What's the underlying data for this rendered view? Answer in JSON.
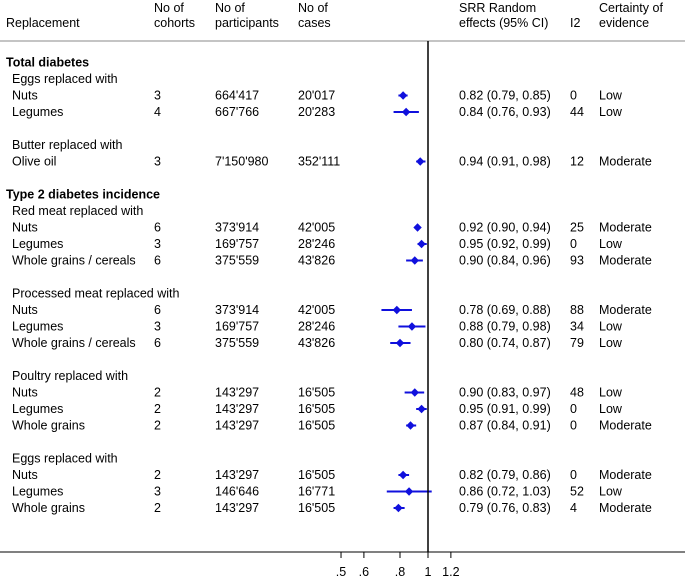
{
  "columns": {
    "replacement": "Replacement",
    "cohorts": [
      "No of",
      "cohorts"
    ],
    "participants": [
      "No of",
      "participants"
    ],
    "cases": [
      "No of",
      "cases"
    ],
    "srr": [
      "SRR Random",
      "effects (95% CI)"
    ],
    "i2": "I2",
    "certainty": [
      "Certainty of",
      "evidence"
    ]
  },
  "rows": [
    {
      "kind": "section",
      "label": "Total diabetes"
    },
    {
      "kind": "group",
      "label": "Eggs replaced with"
    },
    {
      "kind": "data",
      "label": "Nuts",
      "cohorts": "3",
      "participants": "664'417",
      "cases": "20'017",
      "est": 0.82,
      "lo": 0.79,
      "hi": 0.85,
      "ci": "0.82 (0.79, 0.85)",
      "i2": "0",
      "certainty": "Low"
    },
    {
      "kind": "data",
      "label": "Legumes",
      "cohorts": "4",
      "participants": "667'766",
      "cases": "20'283",
      "est": 0.84,
      "lo": 0.76,
      "hi": 0.93,
      "ci": "0.84 (0.76, 0.93)",
      "i2": "44",
      "certainty": "Low"
    },
    {
      "kind": "blank"
    },
    {
      "kind": "group",
      "label": "Butter replaced with"
    },
    {
      "kind": "data",
      "label": "Olive oil",
      "cohorts": "3",
      "participants": "7'150'980",
      "cases": "352'111",
      "est": 0.94,
      "lo": 0.91,
      "hi": 0.98,
      "ci": "0.94 (0.91, 0.98)",
      "i2": "12",
      "certainty": "Moderate"
    },
    {
      "kind": "blank"
    },
    {
      "kind": "section",
      "label": "Type 2 diabetes incidence"
    },
    {
      "kind": "group",
      "label": "Red meat replaced with"
    },
    {
      "kind": "data",
      "label": "Nuts",
      "cohorts": "6",
      "participants": "373'914",
      "cases": "42'005",
      "est": 0.92,
      "lo": 0.9,
      "hi": 0.94,
      "ci": "0.92 (0.90, 0.94)",
      "i2": "25",
      "certainty": "Moderate"
    },
    {
      "kind": "data",
      "label": "Legumes",
      "cohorts": "3",
      "participants": "169'757",
      "cases": "28'246",
      "est": 0.95,
      "lo": 0.92,
      "hi": 0.99,
      "ci": "0.95 (0.92, 0.99)",
      "i2": "0",
      "certainty": "Low"
    },
    {
      "kind": "data",
      "label": "Whole grains / cereals",
      "cohorts": "6",
      "participants": "375'559",
      "cases": "43'826",
      "est": 0.9,
      "lo": 0.84,
      "hi": 0.96,
      "ci": "0.90 (0.84, 0.96)",
      "i2": "93",
      "certainty": "Moderate"
    },
    {
      "kind": "blank"
    },
    {
      "kind": "group",
      "label": "Processed meat replaced with"
    },
    {
      "kind": "data",
      "label": "Nuts",
      "cohorts": "6",
      "participants": "373'914",
      "cases": "42'005",
      "est": 0.78,
      "lo": 0.69,
      "hi": 0.88,
      "ci": "0.78 (0.69, 0.88)",
      "i2": "88",
      "certainty": "Moderate"
    },
    {
      "kind": "data",
      "label": "Legumes",
      "cohorts": "3",
      "participants": "169'757",
      "cases": "28'246",
      "est": 0.88,
      "lo": 0.79,
      "hi": 0.98,
      "ci": "0.88 (0.79, 0.98)",
      "i2": "34",
      "certainty": "Low"
    },
    {
      "kind": "data",
      "label": "Whole grains / cereals",
      "cohorts": "6",
      "participants": "375'559",
      "cases": "43'826",
      "est": 0.8,
      "lo": 0.74,
      "hi": 0.87,
      "ci": "0.80 (0.74, 0.87)",
      "i2": "79",
      "certainty": "Low"
    },
    {
      "kind": "blank"
    },
    {
      "kind": "group",
      "label": "Poultry replaced with"
    },
    {
      "kind": "data",
      "label": "Nuts",
      "cohorts": "2",
      "participants": "143'297",
      "cases": "16'505",
      "est": 0.9,
      "lo": 0.83,
      "hi": 0.97,
      "ci": "0.90 (0.83, 0.97)",
      "i2": "48",
      "certainty": "Low"
    },
    {
      "kind": "data",
      "label": "Legumes",
      "cohorts": "2",
      "participants": "143'297",
      "cases": "16'505",
      "est": 0.95,
      "lo": 0.91,
      "hi": 0.99,
      "ci": "0.95 (0.91, 0.99)",
      "i2": "0",
      "certainty": "Low"
    },
    {
      "kind": "data",
      "label": "Whole grains",
      "cohorts": "2",
      "participants": "143'297",
      "cases": "16'505",
      "est": 0.87,
      "lo": 0.84,
      "hi": 0.91,
      "ci": "0.87 (0.84, 0.91)",
      "i2": "0",
      "certainty": "Moderate"
    },
    {
      "kind": "blank"
    },
    {
      "kind": "group",
      "label": "Eggs replaced with"
    },
    {
      "kind": "data",
      "label": "Nuts",
      "cohorts": "2",
      "participants": "143'297",
      "cases": "16'505",
      "est": 0.82,
      "lo": 0.79,
      "hi": 0.86,
      "ci": "0.82 (0.79, 0.86)",
      "i2": "0",
      "certainty": "Moderate"
    },
    {
      "kind": "data",
      "label": "Legumes",
      "cohorts": "3",
      "participants": "146'646",
      "cases": "16'771",
      "est": 0.86,
      "lo": 0.72,
      "hi": 1.03,
      "ci": "0.86 (0.72, 1.03)",
      "i2": "52",
      "certainty": "Low"
    },
    {
      "kind": "data",
      "label": "Whole grains",
      "cohorts": "2",
      "participants": "143'297",
      "cases": "16'505",
      "est": 0.79,
      "lo": 0.76,
      "hi": 0.83,
      "ci": "0.79 (0.76, 0.83)",
      "i2": "4",
      "certainty": "Moderate"
    }
  ],
  "chart_data": {
    "type": "forest",
    "xscale": "log",
    "xlim": [
      0.5,
      1.2
    ],
    "reference_line": 1,
    "xticks": [
      0.5,
      0.6,
      0.8,
      1,
      1.2
    ],
    "xtick_labels": [
      ".5",
      ".6",
      ".8",
      "1",
      "1.2"
    ],
    "colors": {
      "marker": "#1010dd",
      "axis": "#000000",
      "separator": "#888888"
    }
  }
}
